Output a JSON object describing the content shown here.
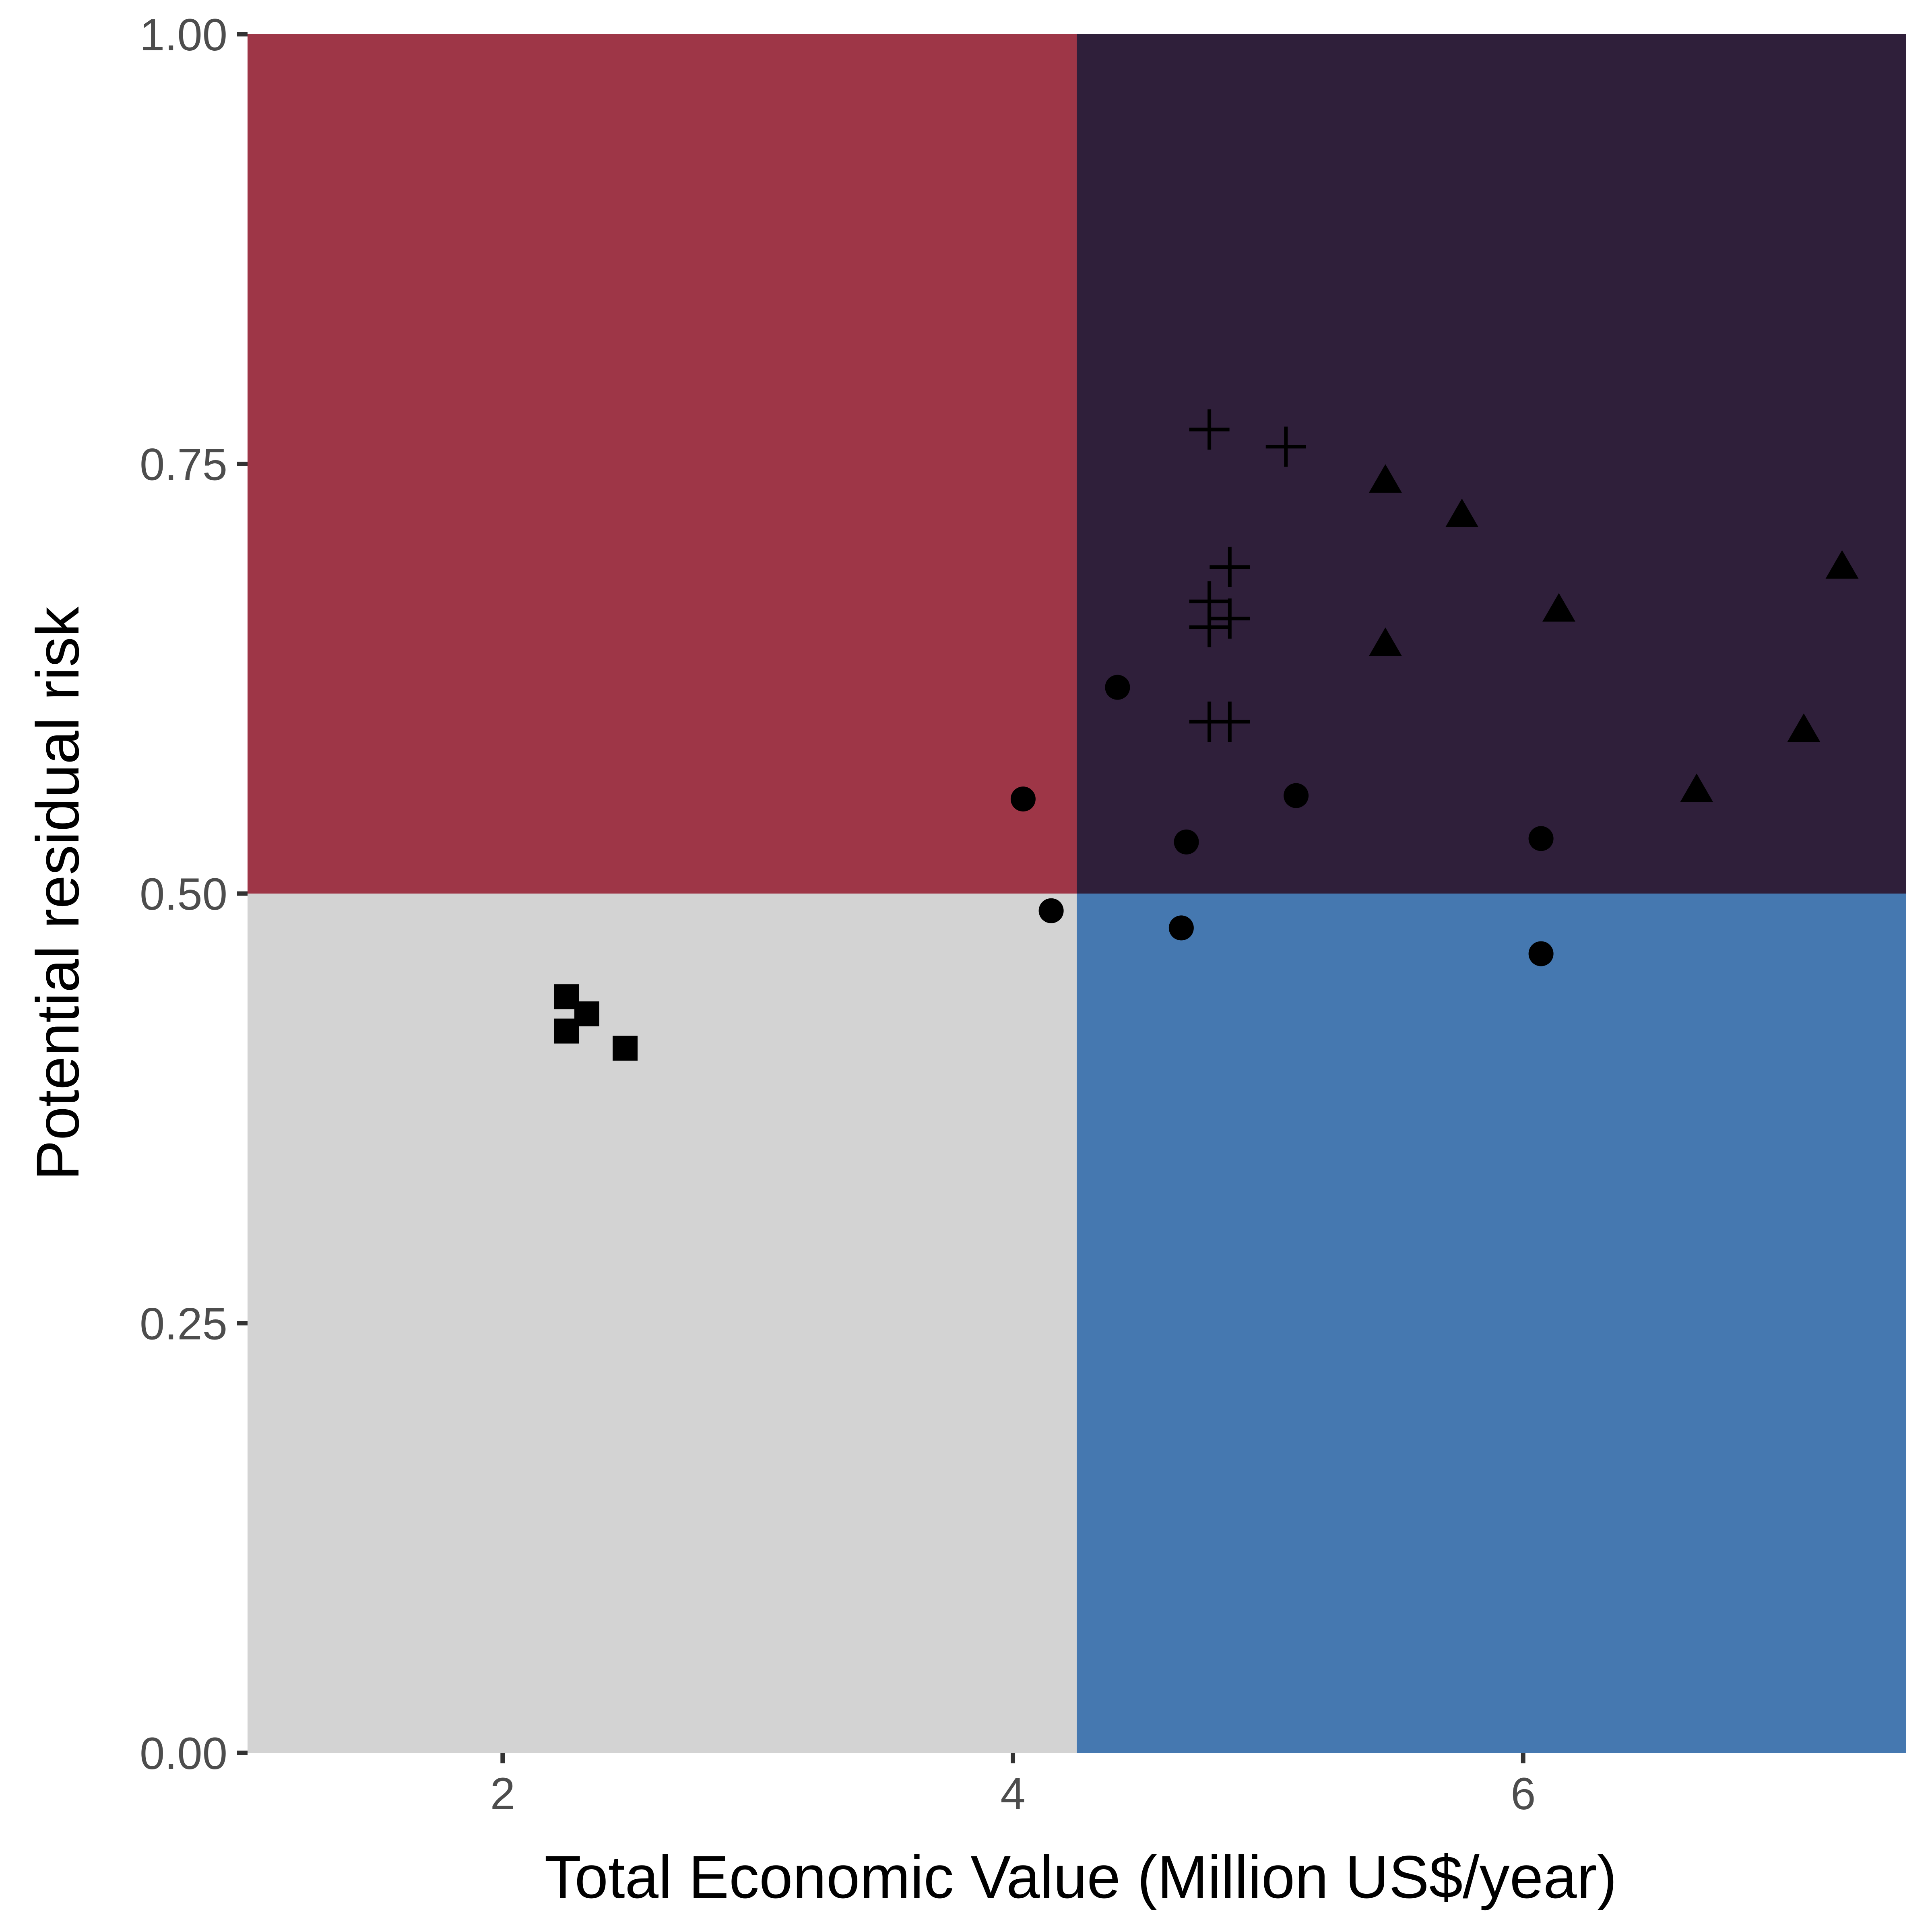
{
  "chart_data": {
    "type": "scatter",
    "title": "",
    "xlabel": "Total Economic Value (Million US$/year)",
    "ylabel": "Potential residual risk",
    "xlim": [
      1,
      7.5
    ],
    "ylim": [
      0,
      1
    ],
    "x_ticks": [
      2,
      4,
      6
    ],
    "x_tick_labels": [
      "2",
      "4",
      "6"
    ],
    "y_ticks": [
      0,
      0.25,
      0.5,
      0.75,
      1
    ],
    "y_tick_labels": [
      "0.00",
      "0.25",
      "0.50",
      "0.75",
      "1.00"
    ],
    "grid": false,
    "legend": "none",
    "quadrants": {
      "x_split": 4.25,
      "y_split": 0.5,
      "top_left_color": "#9e3647",
      "top_right_color": "#2f1f3a",
      "bottom_left_color": "#d3d3d3",
      "bottom_right_color": "#4578b0"
    },
    "series": [
      {
        "marker": "square",
        "points": [
          {
            "x": 2.25,
            "y": 0.44
          },
          {
            "x": 2.33,
            "y": 0.43
          },
          {
            "x": 2.25,
            "y": 0.42
          },
          {
            "x": 2.48,
            "y": 0.41
          }
        ]
      },
      {
        "marker": "circle",
        "points": [
          {
            "x": 4.04,
            "y": 0.555
          },
          {
            "x": 4.15,
            "y": 0.49
          },
          {
            "x": 4.41,
            "y": 0.62
          },
          {
            "x": 4.68,
            "y": 0.53
          },
          {
            "x": 4.66,
            "y": 0.48
          },
          {
            "x": 5.11,
            "y": 0.557
          },
          {
            "x": 6.07,
            "y": 0.532
          },
          {
            "x": 6.07,
            "y": 0.465
          }
        ]
      },
      {
        "marker": "plus",
        "points": [
          {
            "x": 4.77,
            "y": 0.77
          },
          {
            "x": 5.07,
            "y": 0.76
          },
          {
            "x": 4.85,
            "y": 0.69
          },
          {
            "x": 4.77,
            "y": 0.67
          },
          {
            "x": 4.77,
            "y": 0.655
          },
          {
            "x": 4.85,
            "y": 0.66
          },
          {
            "x": 4.77,
            "y": 0.6
          },
          {
            "x": 4.85,
            "y": 0.6
          }
        ]
      },
      {
        "marker": "triangle",
        "points": [
          {
            "x": 5.46,
            "y": 0.74
          },
          {
            "x": 5.76,
            "y": 0.72
          },
          {
            "x": 7.25,
            "y": 0.69
          },
          {
            "x": 6.14,
            "y": 0.665
          },
          {
            "x": 5.46,
            "y": 0.645
          },
          {
            "x": 7.1,
            "y": 0.595
          },
          {
            "x": 6.68,
            "y": 0.56
          }
        ]
      }
    ]
  }
}
